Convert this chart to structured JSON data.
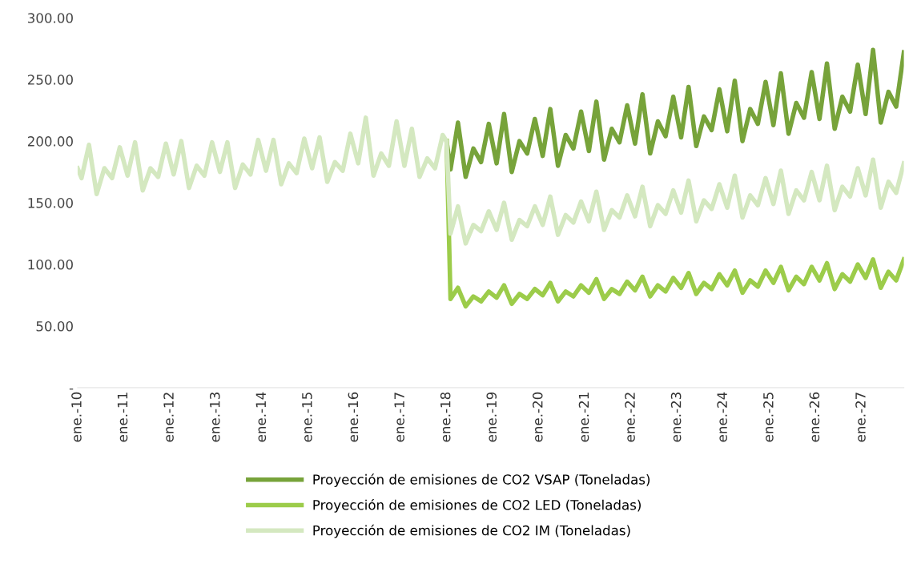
{
  "chart_data": {
    "type": "line",
    "series": [
      {
        "name": "Proyección de emisiones de CO2 VSAP (Toneladas)",
        "color": "#77a33a",
        "x": [
          "2018-01",
          "2018-02",
          "2018-04",
          "2018-06",
          "2018-08",
          "2018-10",
          "2018-12",
          "2019-02",
          "2019-04",
          "2019-06",
          "2019-08",
          "2019-10",
          "2019-12",
          "2020-02",
          "2020-04",
          "2020-06",
          "2020-08",
          "2020-10",
          "2020-12",
          "2021-02",
          "2021-04",
          "2021-06",
          "2021-08",
          "2021-10",
          "2021-12",
          "2022-02",
          "2022-04",
          "2022-06",
          "2022-08",
          "2022-10",
          "2022-12",
          "2023-02",
          "2023-04",
          "2023-06",
          "2023-08",
          "2023-10",
          "2023-12",
          "2024-02",
          "2024-04",
          "2024-06",
          "2024-08",
          "2024-10",
          "2024-12",
          "2025-02",
          "2025-04",
          "2025-06",
          "2025-08",
          "2025-10",
          "2025-12",
          "2026-02",
          "2026-04",
          "2026-06",
          "2026-08",
          "2026-10",
          "2026-12",
          "2027-02",
          "2027-04",
          "2027-06",
          "2027-08",
          "2027-10",
          "2027-12"
        ],
        "values": [
          200,
          177,
          215,
          171,
          194,
          183,
          214,
          182,
          222,
          175,
          200,
          190,
          218,
          188,
          226,
          180,
          205,
          194,
          224,
          192,
          232,
          185,
          210,
          199,
          229,
          198,
          238,
          190,
          216,
          204,
          236,
          203,
          244,
          196,
          220,
          209,
          242,
          208,
          249,
          200,
          226,
          214,
          248,
          213,
          255,
          206,
          231,
          219,
          256,
          218,
          263,
          210,
          236,
          224,
          262,
          222,
          274,
          215,
          240,
          228,
          272
        ]
      },
      {
        "name": "Proyección de emisiones de CO2 LED (Toneladas)",
        "color": "#9ccc4a",
        "x": [
          "2018-01",
          "2018-02",
          "2018-04",
          "2018-06",
          "2018-08",
          "2018-10",
          "2018-12",
          "2019-02",
          "2019-04",
          "2019-06",
          "2019-08",
          "2019-10",
          "2019-12",
          "2020-02",
          "2020-04",
          "2020-06",
          "2020-08",
          "2020-10",
          "2020-12",
          "2021-02",
          "2021-04",
          "2021-06",
          "2021-08",
          "2021-10",
          "2021-12",
          "2022-02",
          "2022-04",
          "2022-06",
          "2022-08",
          "2022-10",
          "2022-12",
          "2023-02",
          "2023-04",
          "2023-06",
          "2023-08",
          "2023-10",
          "2023-12",
          "2024-02",
          "2024-04",
          "2024-06",
          "2024-08",
          "2024-10",
          "2024-12",
          "2025-02",
          "2025-04",
          "2025-06",
          "2025-08",
          "2025-10",
          "2025-12",
          "2026-02",
          "2026-04",
          "2026-06",
          "2026-08",
          "2026-10",
          "2026-12",
          "2027-02",
          "2027-04",
          "2027-06",
          "2027-08",
          "2027-10",
          "2027-12"
        ],
        "values": [
          200,
          72,
          81,
          66,
          74,
          70,
          78,
          73,
          83,
          68,
          76,
          72,
          80,
          75,
          85,
          70,
          78,
          74,
          83,
          77,
          88,
          72,
          80,
          76,
          86,
          79,
          90,
          74,
          83,
          78,
          89,
          81,
          93,
          76,
          85,
          80,
          92,
          83,
          95,
          77,
          87,
          82,
          95,
          85,
          98,
          79,
          90,
          84,
          98,
          87,
          101,
          80,
          92,
          86,
          100,
          89,
          104,
          81,
          94,
          87,
          104
        ]
      },
      {
        "name": "Proyección de emisiones de CO2 IM (Toneladas)",
        "color": "#d4e8c0",
        "x": [
          "2010-01",
          "2010-02",
          "2010-04",
          "2010-06",
          "2010-08",
          "2010-10",
          "2010-12",
          "2011-02",
          "2011-04",
          "2011-06",
          "2011-08",
          "2011-10",
          "2011-12",
          "2012-02",
          "2012-04",
          "2012-06",
          "2012-08",
          "2012-10",
          "2012-12",
          "2013-02",
          "2013-04",
          "2013-06",
          "2013-08",
          "2013-10",
          "2013-12",
          "2014-02",
          "2014-04",
          "2014-06",
          "2014-08",
          "2014-10",
          "2014-12",
          "2015-02",
          "2015-04",
          "2015-06",
          "2015-08",
          "2015-10",
          "2015-12",
          "2016-02",
          "2016-04",
          "2016-06",
          "2016-08",
          "2016-10",
          "2016-12",
          "2017-02",
          "2017-04",
          "2017-06",
          "2017-08",
          "2017-10",
          "2017-12",
          "2018-01",
          "2018-02",
          "2018-04",
          "2018-06",
          "2018-08",
          "2018-10",
          "2018-12",
          "2019-02",
          "2019-04",
          "2019-06",
          "2019-08",
          "2019-10",
          "2019-12",
          "2020-02",
          "2020-04",
          "2020-06",
          "2020-08",
          "2020-10",
          "2020-12",
          "2021-02",
          "2021-04",
          "2021-06",
          "2021-08",
          "2021-10",
          "2021-12",
          "2022-02",
          "2022-04",
          "2022-06",
          "2022-08",
          "2022-10",
          "2022-12",
          "2023-02",
          "2023-04",
          "2023-06",
          "2023-08",
          "2023-10",
          "2023-12",
          "2024-02",
          "2024-04",
          "2024-06",
          "2024-08",
          "2024-10",
          "2024-12",
          "2025-02",
          "2025-04",
          "2025-06",
          "2025-08",
          "2025-10",
          "2025-12",
          "2026-02",
          "2026-04",
          "2026-06",
          "2026-08",
          "2026-10",
          "2026-12",
          "2027-02",
          "2027-04",
          "2027-06",
          "2027-08",
          "2027-10",
          "2027-12"
        ],
        "values": [
          178,
          170,
          197,
          157,
          178,
          170,
          195,
          172,
          199,
          160,
          178,
          171,
          198,
          173,
          200,
          162,
          180,
          172,
          199,
          175,
          199,
          162,
          181,
          173,
          201,
          176,
          201,
          165,
          182,
          174,
          202,
          178,
          203,
          167,
          183,
          176,
          206,
          182,
          219,
          172,
          190,
          180,
          216,
          180,
          210,
          171,
          186,
          178,
          205,
          200,
          125,
          147,
          117,
          132,
          127,
          143,
          128,
          150,
          120,
          136,
          131,
          147,
          132,
          155,
          124,
          140,
          134,
          151,
          135,
          159,
          128,
          144,
          138,
          156,
          139,
          163,
          131,
          148,
          141,
          160,
          142,
          168,
          135,
          152,
          145,
          165,
          146,
          172,
          138,
          156,
          148,
          170,
          149,
          176,
          141,
          160,
          152,
          175,
          152,
          180,
          144,
          163,
          155,
          178,
          156,
          185,
          146,
          167,
          158,
          182
        ]
      }
    ],
    "xticks": [
      {
        "value": "2010-01",
        "label": "ene.-10"
      },
      {
        "value": "2011-01",
        "label": "ene.-11"
      },
      {
        "value": "2012-01",
        "label": "ene.-12"
      },
      {
        "value": "2013-01",
        "label": "ene.-13"
      },
      {
        "value": "2014-01",
        "label": "ene.-14"
      },
      {
        "value": "2015-01",
        "label": "ene.-15"
      },
      {
        "value": "2016-01",
        "label": "ene.-16"
      },
      {
        "value": "2017-01",
        "label": "ene.-17"
      },
      {
        "value": "2018-01",
        "label": "ene.-18"
      },
      {
        "value": "2019-01",
        "label": "ene.-19"
      },
      {
        "value": "2020-01",
        "label": "ene.-20"
      },
      {
        "value": "2021-01",
        "label": "ene.-21"
      },
      {
        "value": "2022-01",
        "label": "ene.-22"
      },
      {
        "value": "2023-01",
        "label": "ene.-23"
      },
      {
        "value": "2024-01",
        "label": "ene.-24"
      },
      {
        "value": "2025-01",
        "label": "ene.-25"
      },
      {
        "value": "2026-01",
        "label": "ene.-26"
      },
      {
        "value": "2027-01",
        "label": "ene.-27"
      }
    ],
    "xlim": [
      "2010-01",
      "2027-12"
    ],
    "ylim": [
      0,
      300
    ],
    "yticks": [
      {
        "value": 0,
        "label": "-"
      },
      {
        "value": 50,
        "label": "50.00"
      },
      {
        "value": 100,
        "label": "100.00"
      },
      {
        "value": 150,
        "label": "150.00"
      },
      {
        "value": 200,
        "label": "200.00"
      },
      {
        "value": 250,
        "label": "250.00"
      },
      {
        "value": 300,
        "label": "300.00"
      }
    ],
    "grid": false,
    "legend": "bottom",
    "marker": "none",
    "line_style": "solid"
  }
}
